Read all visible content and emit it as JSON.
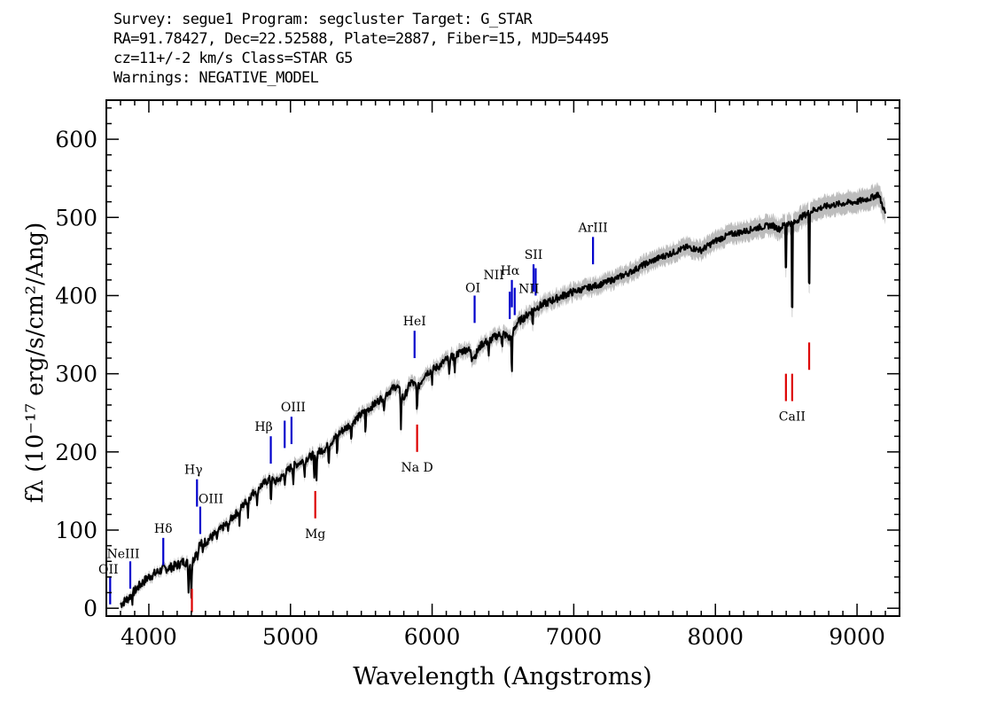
{
  "header": {
    "line1": "Survey: segue1 Program: segcluster Target: G_STAR",
    "line2": "RA=91.78427, Dec=22.52588, Plate=2887, Fiber=15, MJD=54495",
    "line3": "cz=11+/-2 km/s Class=STAR G5",
    "line4": "Warnings: NEGATIVE_MODEL"
  },
  "colors": {
    "spectrum": "#000000",
    "error_band": "#bdbdbd",
    "emission_lines": "#0000cc",
    "absorption_lines": "#dd0000"
  },
  "chart_data": {
    "type": "line",
    "xlabel": "Wavelength (Angstroms)",
    "ylabel": "fλ (10⁻¹⁷ erg/s/cm²/Ang)",
    "xlim": [
      3700,
      9300
    ],
    "ylim": [
      -10,
      650
    ],
    "x_ticks": [
      4000,
      5000,
      6000,
      7000,
      8000,
      9000
    ],
    "y_ticks": [
      0,
      100,
      200,
      300,
      400,
      500,
      600
    ],
    "grid": false,
    "series": [
      {
        "x": [
          3800,
          3850,
          3900,
          3950,
          4000,
          4050,
          4100,
          4150,
          4200,
          4250,
          4300,
          4350,
          4400,
          4450,
          4500,
          4550,
          4600,
          4650,
          4700,
          4750,
          4800,
          4850,
          4900,
          4950,
          5000,
          5050,
          5100,
          5150,
          5200,
          5250,
          5300,
          5350,
          5400,
          5450,
          5500,
          5550,
          5600,
          5650,
          5700,
          5750,
          5800,
          5850,
          5900,
          5950,
          6000,
          6050,
          6100,
          6150,
          6200,
          6250,
          6300,
          6350,
          6400,
          6450,
          6500,
          6550,
          6600,
          6650,
          6700,
          6750,
          6800,
          6850,
          6900,
          6950,
          7000,
          7100,
          7200,
          7300,
          7400,
          7500,
          7600,
          7700,
          7800,
          7900,
          8000,
          8100,
          8200,
          8300,
          8400,
          8450,
          8500,
          8550,
          8600,
          8650,
          8700,
          8800,
          8900,
          9000,
          9100,
          9150,
          9200
        ],
        "y": [
          5,
          12,
          22,
          32,
          40,
          45,
          50,
          52,
          55,
          60,
          55,
          80,
          85,
          92,
          100,
          108,
          118,
          128,
          140,
          150,
          158,
          165,
          162,
          170,
          180,
          185,
          190,
          195,
          200,
          205,
          215,
          225,
          232,
          240,
          248,
          255,
          262,
          270,
          278,
          285,
          268,
          290,
          282,
          300,
          305,
          310,
          318,
          322,
          328,
          332,
          322,
          338,
          342,
          348,
          352,
          345,
          365,
          372,
          380,
          386,
          390,
          394,
          398,
          402,
          405,
          410,
          415,
          422,
          430,
          440,
          448,
          455,
          462,
          458,
          470,
          478,
          482,
          487,
          490,
          485,
          493,
          492,
          500,
          505,
          510,
          515,
          518,
          520,
          525,
          530,
          505
        ]
      },
      {
        "x": [
          3885,
          4280,
          4300,
          4345,
          4380,
          4480,
          4560,
          4640,
          4700,
          4765,
          4862,
          4960,
          5020,
          5100,
          5167,
          5183,
          5270,
          5330,
          5430,
          5530,
          5660,
          5780,
          5893,
          6000,
          6120,
          6160,
          6280,
          6400,
          6495,
          6563,
          6710,
          8498,
          8542,
          8662
        ],
        "y": [
          8,
          20,
          15,
          60,
          70,
          84,
          95,
          108,
          118,
          125,
          130,
          162,
          160,
          168,
          160,
          155,
          180,
          190,
          208,
          218,
          248,
          232,
          248,
          290,
          295,
          300,
          318,
          320,
          330,
          290,
          358,
          410,
          330,
          375
        ]
      }
    ],
    "annotations": {
      "emission": [
        {
          "label": "OII",
          "wavelength": 3727,
          "ymin": 5,
          "ymax": 40
        },
        {
          "label": "NeIII",
          "wavelength": 3869,
          "ymin": 25,
          "ymax": 60
        },
        {
          "label": "Hδ",
          "wavelength": 4102,
          "ymin": 55,
          "ymax": 90
        },
        {
          "label": "Hγ",
          "wavelength": 4340,
          "ymin": 130,
          "ymax": 165
        },
        {
          "label": "OIII",
          "wavelength": 4363,
          "ymin": 95,
          "ymax": 130
        },
        {
          "label": "Hβ",
          "wavelength": 4861,
          "ymin": 185,
          "ymax": 220
        },
        {
          "label": "OIII",
          "wavelength": 4959,
          "ymin": 205,
          "ymax": 240
        },
        {
          "label": "OIII",
          "wavelength": 5007,
          "ymin": 210,
          "ymax": 245
        },
        {
          "label": "HeI",
          "wavelength": 5876,
          "ymin": 320,
          "ymax": 355
        },
        {
          "label": "OI",
          "wavelength": 6300,
          "ymin": 365,
          "ymax": 400
        },
        {
          "label": "NII",
          "wavelength": 6548,
          "ymin": 370,
          "ymax": 405
        },
        {
          "label": "Hα",
          "wavelength": 6563,
          "ymin": 385,
          "ymax": 420
        },
        {
          "label": "NII",
          "wavelength": 6583,
          "ymin": 375,
          "ymax": 410
        },
        {
          "label": "SII",
          "wavelength": 6716,
          "ymin": 405,
          "ymax": 440
        },
        {
          "label": "SII",
          "wavelength": 6731,
          "ymin": 400,
          "ymax": 435
        },
        {
          "label": "ArIII",
          "wavelength": 7136,
          "ymin": 440,
          "ymax": 475
        }
      ],
      "absorption": [
        {
          "label": "",
          "wavelength": 4304,
          "ymin": -5,
          "ymax": 25
        },
        {
          "label": "Mg",
          "wavelength": 5175,
          "ymin": 115,
          "ymax": 150
        },
        {
          "label": "Na D",
          "wavelength": 5894,
          "ymin": 200,
          "ymax": 235
        },
        {
          "label": "",
          "wavelength": 8498,
          "ymin": 265,
          "ymax": 300
        },
        {
          "label": "CaII",
          "wavelength": 8542,
          "ymin": 265,
          "ymax": 300
        },
        {
          "label": "",
          "wavelength": 8662,
          "ymin": 305,
          "ymax": 340
        }
      ]
    }
  }
}
